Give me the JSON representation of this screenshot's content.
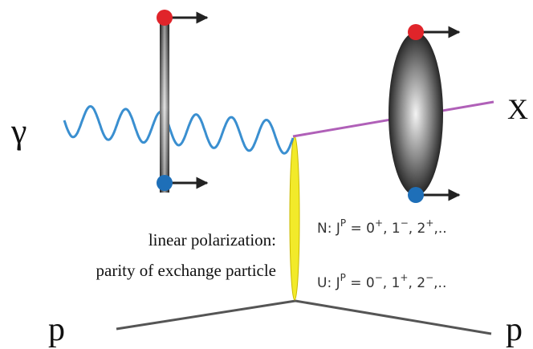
{
  "labels": {
    "photon": "γ",
    "final_state": "X",
    "proton_in": "p",
    "proton_out": "p"
  },
  "note": {
    "line1": "linear polarization:",
    "line2": "parity of exchange particle"
  },
  "natural": [
    {
      "base": "N:  J",
      "sup": "P"
    },
    {
      "base": " = 0",
      "sup": "+"
    },
    {
      "base": ", 1",
      "sup": "−"
    },
    {
      "base": ", 2",
      "sup": "+"
    },
    {
      "base": ",.."
    }
  ],
  "unnatural": [
    {
      "base": "U:  J",
      "sup": "P"
    },
    {
      "base": " = 0",
      "sup": "−"
    },
    {
      "base": ", 1",
      "sup": "+"
    },
    {
      "base": ", 2",
      "sup": "−"
    },
    {
      "base": ",.."
    }
  ]
}
